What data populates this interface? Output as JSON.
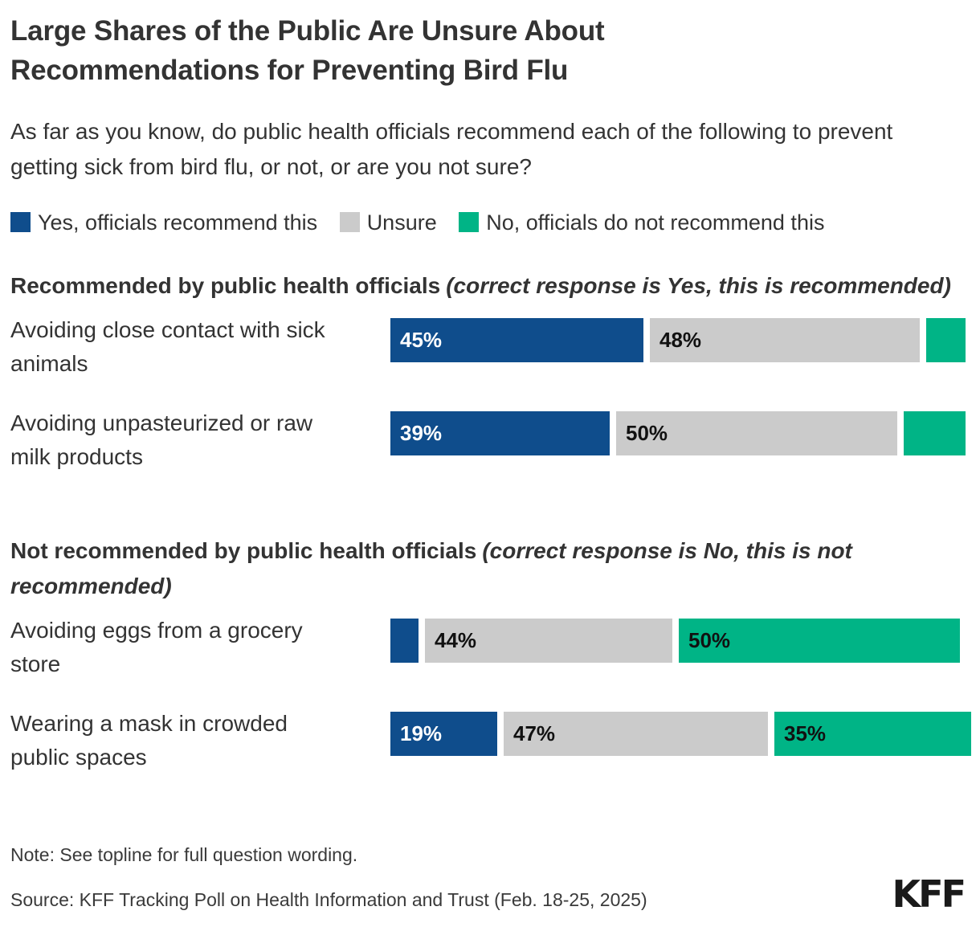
{
  "header": {
    "title": "Large Shares of the Public Are Unsure About Recommendations for Preventing Bird Flu",
    "subtitle": "As far as you know, do public health officials recommend each of the following to prevent getting sick from bird flu, or not, or are you not sure?"
  },
  "legend": {
    "items": [
      {
        "label": "Yes, officials recommend this",
        "color": "#0F4D8C"
      },
      {
        "label": "Unsure",
        "color": "#CBCBCB"
      },
      {
        "label": "No, officials do not recommend this",
        "color": "#00B486"
      }
    ]
  },
  "chart_data": {
    "type": "bar",
    "variant": "horizontal-stacked",
    "unit": "percent",
    "axis_max": 100,
    "grid": false,
    "legend_position": "top",
    "series_names": [
      "Yes, officials recommend this",
      "Unsure",
      "No, officials do not recommend this"
    ],
    "colors": [
      "#0F4D8C",
      "#CBCBCB",
      "#00B486"
    ],
    "sections": [
      {
        "heading": "Recommended by public health officials",
        "heading_note": "(correct response is Yes, this is recommended)",
        "rows": [
          {
            "category": "Avoiding close contact with sick animals",
            "values": [
              45,
              48,
              7
            ],
            "bar_labels": [
              "45%",
              "48%",
              ""
            ]
          },
          {
            "category": "Avoiding unpasteurized or raw milk products",
            "values": [
              39,
              50,
              11
            ],
            "bar_labels": [
              "39%",
              "50%",
              ""
            ]
          }
        ]
      },
      {
        "heading": "Not recommended by public health officials",
        "heading_note": "(correct response is No, this is not recommended)",
        "rows": [
          {
            "category": "Avoiding eggs from a grocery store",
            "values": [
              5,
              44,
              50
            ],
            "bar_labels": [
              "",
              "44%",
              "50%"
            ]
          },
          {
            "category": "Wearing a mask in crowded public spaces",
            "values": [
              19,
              47,
              35
            ],
            "bar_labels": [
              "19%",
              "47%",
              "35%"
            ]
          }
        ]
      }
    ]
  },
  "footer": {
    "note": "Note: See topline for full question wording.",
    "source": "Source: KFF Tracking Poll on Health Information and Trust (Feb. 18-25, 2025)",
    "logo": "KFF"
  }
}
